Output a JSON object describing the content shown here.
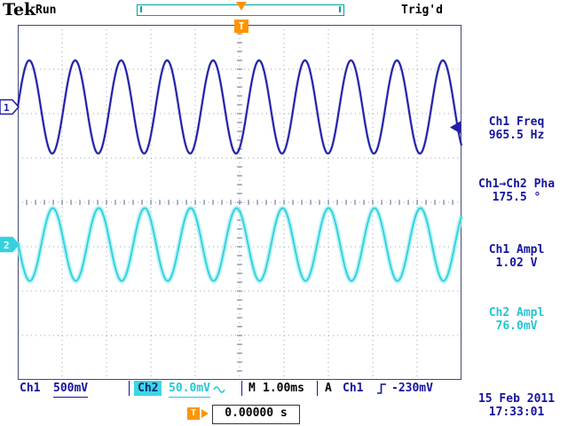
{
  "header": {
    "logo": "Tek",
    "acq_state": "Run",
    "trig_status": "Trig'd",
    "trigger_marker": "T"
  },
  "icons": {
    "trigger_position": "orange-down-arrow",
    "trigger_slope": "rising-edge",
    "ch2_coupling": "ac-sine-wave"
  },
  "colors": {
    "ch1": "#1e1ea8",
    "ch1_text": "#14149c",
    "ch1_halo": "#9090d8",
    "ch2": "#35d2de",
    "ch2_text": "#25c6d6",
    "ch2_halo": "#a8f0f4",
    "orange": "#ff9500",
    "grid": "#9aa0bc",
    "tick": "#6a7098",
    "border": "#404878"
  },
  "measurements": [
    {
      "label": "Ch1 Freq",
      "value": "965.5 Hz",
      "channel": "ch1"
    },
    {
      "label": "Ch1→Ch2 Pha",
      "value": "175.5 °",
      "channel": "ch1"
    },
    {
      "label": "Ch1 Ampl",
      "value": "1.02 V",
      "channel": "ch1"
    },
    {
      "label": "Ch2 Ampl",
      "value": "76.0mV",
      "channel": "ch2"
    }
  ],
  "status_bar": {
    "ch1_label": "Ch1",
    "ch1_scale": "500mV",
    "ch2_label": "Ch2",
    "ch2_scale": "50.0mV",
    "timebase_label": "M",
    "timebase": "1.00ms",
    "trigger_mode": "A",
    "trigger_source": "Ch1",
    "trigger_level": "-230mV"
  },
  "footer": {
    "trigger_pos_label": "T",
    "delay_readout": "0.00000 s",
    "date": "15 Feb 2011",
    "time": "17:33:01"
  },
  "chart_data": {
    "type": "line",
    "x_divisions": 10,
    "y_divisions": 8,
    "timebase_s_per_div": 0.001,
    "grid": "dotted",
    "series": [
      {
        "name": "Ch1",
        "frequency_hz": 965.5,
        "volts_per_div": 0.5,
        "amplitude_pp_v": 1.02,
        "amplitude_div": 1.05,
        "center_div_from_top": 1.85,
        "phase_deg": 0,
        "color": "#1e1ea8",
        "halo": "#9090d8"
      },
      {
        "name": "Ch2",
        "frequency_hz": 965.5,
        "volts_per_div": 0.05,
        "amplitude_pp_v": 0.076,
        "amplitude_div": 0.82,
        "center_div_from_top": 4.95,
        "phase_deg": 175.5,
        "color": "#35d2de",
        "halo": "#a8f0f4"
      }
    ],
    "trigger_level_div_from_top": 2.31,
    "trigger_level_v": -0.23,
    "trigger_position_frac": 0.5
  }
}
